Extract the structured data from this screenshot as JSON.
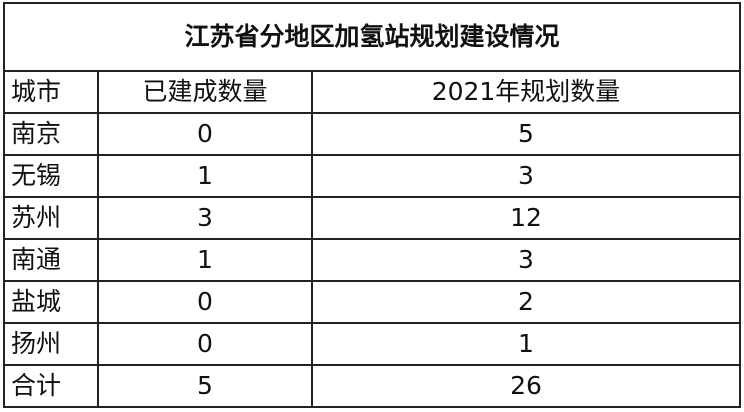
{
  "title": "江苏省分地区加氢站规划建设情况",
  "headers": [
    "城市",
    "已建成数量",
    "2021年规划数量"
  ],
  "rows": [
    [
      "南京",
      "0",
      "5"
    ],
    [
      "无锡",
      "1",
      "3"
    ],
    [
      "苏州",
      "3",
      "12"
    ],
    [
      "南通",
      "1",
      "3"
    ],
    [
      "盐城",
      "0",
      "2"
    ],
    [
      "扬州",
      "0",
      "1"
    ],
    [
      "合计",
      "5",
      "26"
    ]
  ]
}
